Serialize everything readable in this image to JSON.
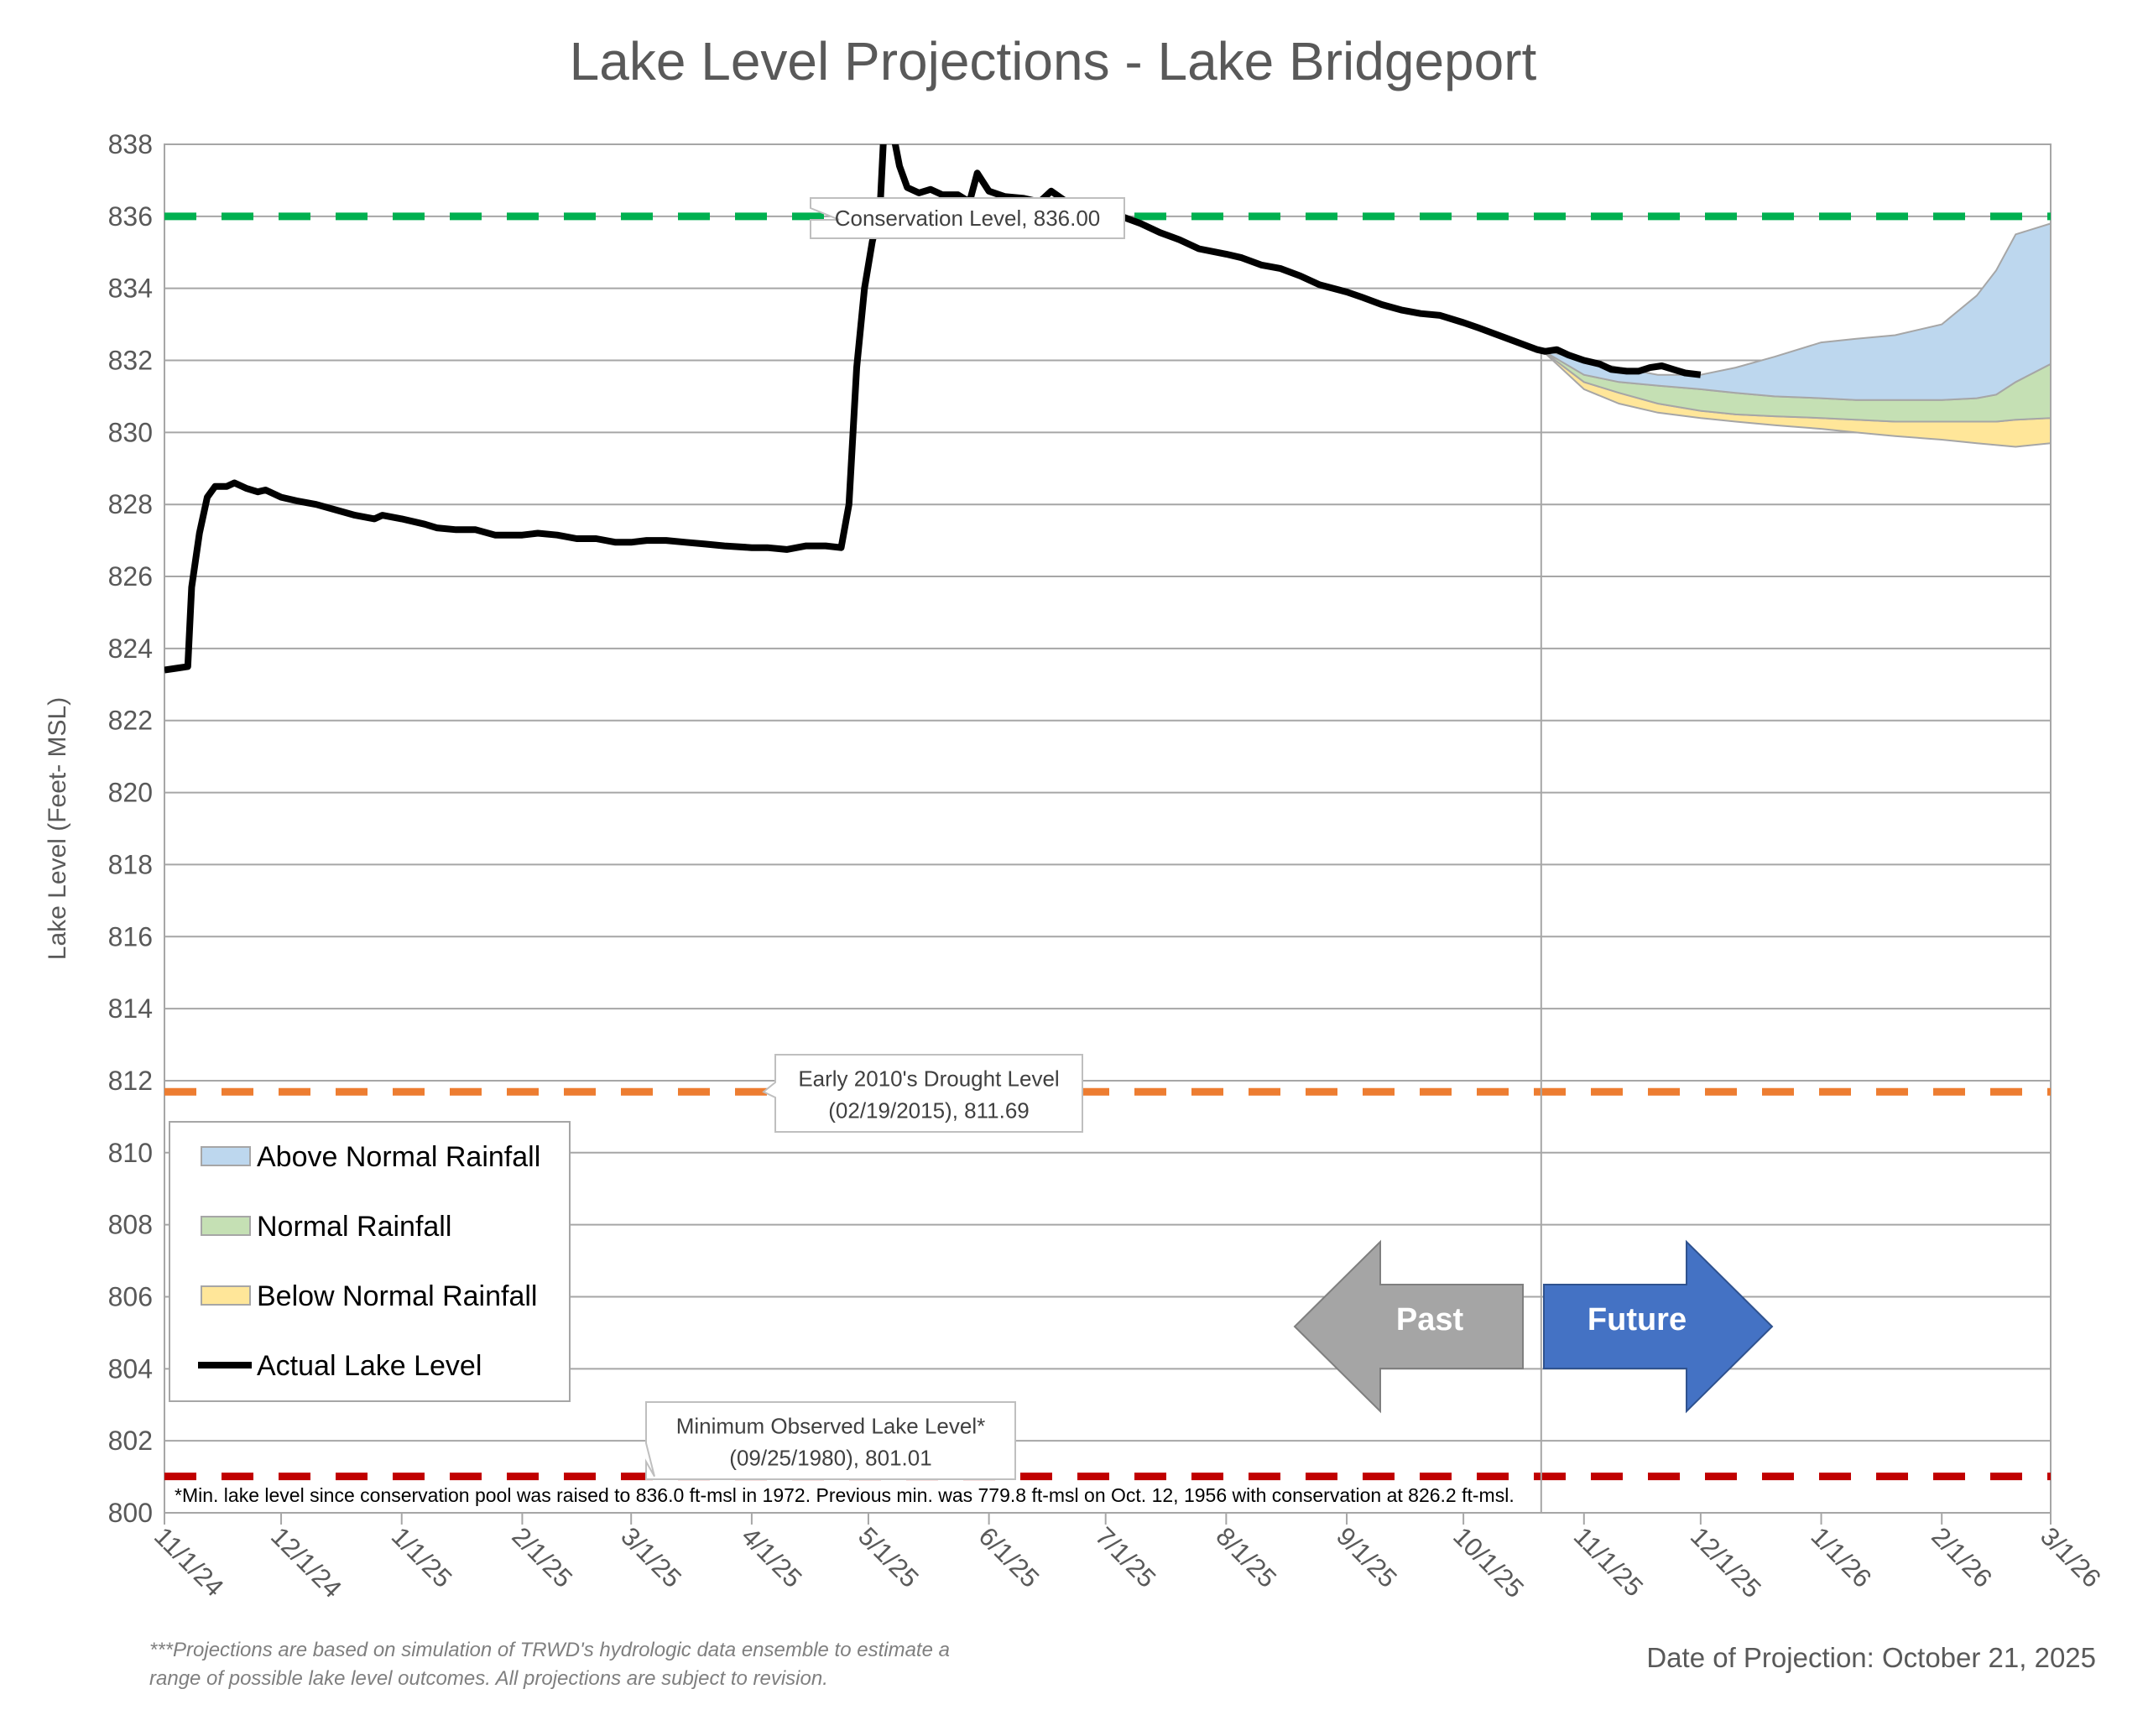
{
  "chart_data": {
    "type": "line",
    "title": "Lake Level Projections - Lake Bridgeport",
    "ylabel": "Lake Level (Feet- MSL)",
    "xlabel": "",
    "ylim": [
      800,
      838
    ],
    "yticks": [
      800,
      802,
      804,
      806,
      808,
      810,
      812,
      814,
      816,
      818,
      820,
      822,
      824,
      826,
      828,
      830,
      832,
      834,
      836,
      838
    ],
    "xlim": [
      "2024-11-01",
      "2026-03-01"
    ],
    "xticks": [
      {
        "date": "2024-11-01",
        "label": "11/1/24"
      },
      {
        "date": "2024-12-01",
        "label": "12/1/24"
      },
      {
        "date": "2025-01-01",
        "label": "1/1/25"
      },
      {
        "date": "2025-02-01",
        "label": "2/1/25"
      },
      {
        "date": "2025-03-01",
        "label": "3/1/25"
      },
      {
        "date": "2025-04-01",
        "label": "4/1/25"
      },
      {
        "date": "2025-05-01",
        "label": "5/1/25"
      },
      {
        "date": "2025-06-01",
        "label": "6/1/25"
      },
      {
        "date": "2025-07-01",
        "label": "7/1/25"
      },
      {
        "date": "2025-08-01",
        "label": "8/1/25"
      },
      {
        "date": "2025-09-01",
        "label": "9/1/25"
      },
      {
        "date": "2025-10-01",
        "label": "10/1/25"
      },
      {
        "date": "2025-11-01",
        "label": "11/1/25"
      },
      {
        "date": "2025-12-01",
        "label": "12/1/25"
      },
      {
        "date": "2026-01-01",
        "label": "1/1/26"
      },
      {
        "date": "2026-02-01",
        "label": "2/1/26"
      },
      {
        "date": "2026-03-01",
        "label": "3/1/26"
      }
    ],
    "grid": true,
    "divider_date": "2025-10-21",
    "reference_lines": [
      {
        "value": 836.0,
        "color": "#00B050",
        "label": "Conservation Level, 836.00"
      },
      {
        "value": 811.69,
        "color": "#ED7D31",
        "label": "Early 2010's Drought Level\n(02/19/2015), 811.69"
      },
      {
        "value": 801.01,
        "color": "#C00000",
        "label": "Minimum Observed Lake Level*\n(09/25/1980), 801.01"
      }
    ],
    "series": [
      {
        "name": "Actual Lake Level",
        "color": "#000000",
        "points": [
          [
            "2024-11-01",
            823.4
          ],
          [
            "2024-11-04",
            823.45
          ],
          [
            "2024-11-07",
            823.5
          ],
          [
            "2024-11-08",
            825.7
          ],
          [
            "2024-11-10",
            827.2
          ],
          [
            "2024-11-12",
            828.2
          ],
          [
            "2024-11-14",
            828.5
          ],
          [
            "2024-11-17",
            828.5
          ],
          [
            "2024-11-19",
            828.6
          ],
          [
            "2024-11-22",
            828.45
          ],
          [
            "2024-11-25",
            828.35
          ],
          [
            "2024-11-27",
            828.4
          ],
          [
            "2024-12-01",
            828.2
          ],
          [
            "2024-12-05",
            828.1
          ],
          [
            "2024-12-10",
            828.0
          ],
          [
            "2024-12-15",
            827.85
          ],
          [
            "2024-12-20",
            827.7
          ],
          [
            "2024-12-25",
            827.6
          ],
          [
            "2024-12-27",
            827.7
          ],
          [
            "2025-01-01",
            827.6
          ],
          [
            "2025-01-07",
            827.45
          ],
          [
            "2025-01-10",
            827.35
          ],
          [
            "2025-01-15",
            827.3
          ],
          [
            "2025-01-20",
            827.3
          ],
          [
            "2025-01-25",
            827.15
          ],
          [
            "2025-02-01",
            827.15
          ],
          [
            "2025-02-05",
            827.2
          ],
          [
            "2025-02-10",
            827.15
          ],
          [
            "2025-02-15",
            827.05
          ],
          [
            "2025-02-20",
            827.05
          ],
          [
            "2025-02-25",
            826.95
          ],
          [
            "2025-03-01",
            826.95
          ],
          [
            "2025-03-05",
            827.0
          ],
          [
            "2025-03-10",
            827.0
          ],
          [
            "2025-03-15",
            826.95
          ],
          [
            "2025-03-20",
            826.9
          ],
          [
            "2025-03-25",
            826.85
          ],
          [
            "2025-04-01",
            826.8
          ],
          [
            "2025-04-05",
            826.8
          ],
          [
            "2025-04-10",
            826.75
          ],
          [
            "2025-04-15",
            826.85
          ],
          [
            "2025-04-20",
            826.85
          ],
          [
            "2025-04-24",
            826.8
          ],
          [
            "2025-04-26",
            828.0
          ],
          [
            "2025-04-28",
            831.8
          ],
          [
            "2025-04-30",
            834.0
          ],
          [
            "2025-05-02",
            835.3
          ],
          [
            "2025-05-04",
            836.2
          ],
          [
            "2025-05-05",
            838.4
          ],
          [
            "2025-05-07",
            838.5
          ],
          [
            "2025-05-09",
            837.4
          ],
          [
            "2025-05-11",
            836.8
          ],
          [
            "2025-05-14",
            836.65
          ],
          [
            "2025-05-17",
            836.75
          ],
          [
            "2025-05-20",
            836.6
          ],
          [
            "2025-05-24",
            836.6
          ],
          [
            "2025-05-27",
            836.4
          ],
          [
            "2025-05-29",
            837.2
          ],
          [
            "2025-06-01",
            836.7
          ],
          [
            "2025-06-05",
            836.55
          ],
          [
            "2025-06-10",
            836.5
          ],
          [
            "2025-06-14",
            836.4
          ],
          [
            "2025-06-17",
            836.7
          ],
          [
            "2025-06-21",
            836.4
          ],
          [
            "2025-06-25",
            836.3
          ],
          [
            "2025-07-01",
            836.15
          ],
          [
            "2025-07-05",
            836.0
          ],
          [
            "2025-07-10",
            835.8
          ],
          [
            "2025-07-15",
            835.55
          ],
          [
            "2025-07-20",
            835.35
          ],
          [
            "2025-07-25",
            835.1
          ],
          [
            "2025-08-01",
            834.95
          ],
          [
            "2025-08-05",
            834.85
          ],
          [
            "2025-08-10",
            834.65
          ],
          [
            "2025-08-15",
            834.55
          ],
          [
            "2025-08-20",
            834.35
          ],
          [
            "2025-08-25",
            834.1
          ],
          [
            "2025-09-01",
            833.9
          ],
          [
            "2025-09-05",
            833.75
          ],
          [
            "2025-09-10",
            833.55
          ],
          [
            "2025-09-15",
            833.4
          ],
          [
            "2025-09-20",
            833.3
          ],
          [
            "2025-09-25",
            833.25
          ],
          [
            "2025-10-01",
            833.05
          ],
          [
            "2025-10-05",
            832.9
          ],
          [
            "2025-10-10",
            832.7
          ],
          [
            "2025-10-15",
            832.5
          ],
          [
            "2025-10-20",
            832.3
          ],
          [
            "2025-10-22",
            832.25
          ],
          [
            "2025-10-25",
            832.3
          ],
          [
            "2025-10-28",
            832.15
          ],
          [
            "2025-11-01",
            832.0
          ],
          [
            "2025-11-05",
            831.9
          ],
          [
            "2025-11-08",
            831.75
          ],
          [
            "2025-11-12",
            831.7
          ],
          [
            "2025-11-15",
            831.7
          ],
          [
            "2025-11-18",
            831.8
          ],
          [
            "2025-11-21",
            831.85
          ],
          [
            "2025-11-24",
            831.75
          ],
          [
            "2025-11-27",
            831.65
          ],
          [
            "2025-12-01",
            831.6
          ]
        ]
      },
      {
        "name": "Above Normal Rainfall",
        "color": "#BDD7EE",
        "dates": [
          "2025-10-21",
          "2025-11-01",
          "2025-11-10",
          "2025-11-20",
          "2025-12-01",
          "2025-12-10",
          "2025-12-20",
          "2026-01-01",
          "2026-01-10",
          "2026-01-20",
          "2026-02-01",
          "2026-02-10",
          "2026-02-15",
          "2026-02-20",
          "2026-03-01"
        ],
        "upper": [
          832.3,
          832.0,
          831.8,
          831.6,
          831.6,
          831.8,
          832.1,
          832.5,
          832.6,
          832.7,
          833.0,
          833.8,
          834.5,
          835.5,
          835.8
        ],
        "lower": [
          832.3,
          831.6,
          831.4,
          831.3,
          831.2,
          831.1,
          831.0,
          830.95,
          830.9,
          830.9,
          830.9,
          830.95,
          831.05,
          831.4,
          831.9
        ]
      },
      {
        "name": "Normal Rainfall",
        "color": "#C5E0B4",
        "dates": [
          "2025-10-21",
          "2025-11-01",
          "2025-11-10",
          "2025-11-20",
          "2025-12-01",
          "2025-12-10",
          "2025-12-20",
          "2026-01-01",
          "2026-01-10",
          "2026-01-20",
          "2026-02-01",
          "2026-02-10",
          "2026-02-15",
          "2026-02-20",
          "2026-03-01"
        ],
        "upper": [
          832.3,
          831.6,
          831.4,
          831.3,
          831.2,
          831.1,
          831.0,
          830.95,
          830.9,
          830.9,
          830.9,
          830.95,
          831.05,
          831.4,
          831.9
        ],
        "lower": [
          832.3,
          831.4,
          831.1,
          830.8,
          830.6,
          830.5,
          830.45,
          830.4,
          830.35,
          830.3,
          830.3,
          830.3,
          830.3,
          830.35,
          830.4
        ]
      },
      {
        "name": "Below Normal Rainfall",
        "color": "#FFE699",
        "dates": [
          "2025-10-21",
          "2025-11-01",
          "2025-11-10",
          "2025-11-20",
          "2025-12-01",
          "2025-12-10",
          "2025-12-20",
          "2026-01-01",
          "2026-01-10",
          "2026-01-20",
          "2026-02-01",
          "2026-02-10",
          "2026-02-15",
          "2026-02-20",
          "2026-03-01"
        ],
        "upper": [
          832.3,
          831.4,
          831.1,
          830.8,
          830.6,
          830.5,
          830.45,
          830.4,
          830.35,
          830.3,
          830.3,
          830.3,
          830.3,
          830.35,
          830.4
        ],
        "lower": [
          832.3,
          831.2,
          830.8,
          830.55,
          830.4,
          830.3,
          830.2,
          830.1,
          830.0,
          829.9,
          829.8,
          829.7,
          829.65,
          829.6,
          829.7
        ]
      }
    ],
    "legend": {
      "position": "bottom-left",
      "entries": [
        "Above Normal Rainfall",
        "Normal Rainfall",
        "Below Normal Rainfall",
        "Actual Lake Level"
      ]
    },
    "annotations": {
      "past_label": "Past",
      "future_label": "Future",
      "past_color": "#A5A5A5",
      "future_color": "#4472C4",
      "footnote_min": "*Min. lake level since conservation pool was raised to 836.0 ft-msl in 1972.  Previous min. was 779.8 ft-msl on Oct. 12, 1956 with conservation at 826.2 ft-msl.",
      "projection_note": [
        "***Projections are based on simulation of TRWD's hydrologic data ensemble to estimate a",
        "range of possible lake level outcomes.  All projections are subject to revision."
      ],
      "date_of_projection": "Date of Projection: October 21, 2025"
    }
  }
}
